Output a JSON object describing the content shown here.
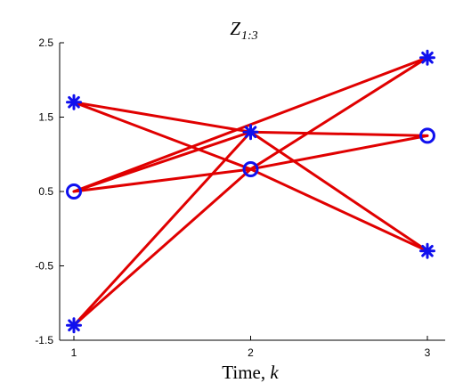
{
  "chart_data": {
    "type": "line",
    "title": {
      "main": "Z",
      "sub": "1:3"
    },
    "xlabel": {
      "text": "Time, ",
      "var": "k"
    },
    "ylabel": "",
    "xlim": [
      1,
      3
    ],
    "ylim": [
      -1.5,
      2.5
    ],
    "xticks": [
      1,
      2,
      3
    ],
    "xtick_labels": [
      "1",
      "2",
      "3"
    ],
    "yticks": [
      -1.5,
      -0.5,
      0.5,
      1.5,
      2.5
    ],
    "ytick_labels": [
      "-1.5",
      "-0.5",
      "0.5",
      "1.5",
      "2.5"
    ],
    "grid": false,
    "points": [
      {
        "x": 1,
        "y": 1.7,
        "marker": "asterisk"
      },
      {
        "x": 1,
        "y": 0.5,
        "marker": "circle"
      },
      {
        "x": 1,
        "y": -1.3,
        "marker": "asterisk"
      },
      {
        "x": 2,
        "y": 1.3,
        "marker": "asterisk"
      },
      {
        "x": 2,
        "y": 0.8,
        "marker": "circle"
      },
      {
        "x": 3,
        "y": 2.3,
        "marker": "asterisk"
      },
      {
        "x": 3,
        "y": 1.25,
        "marker": "circle"
      },
      {
        "x": 3,
        "y": -0.3,
        "marker": "asterisk"
      }
    ],
    "segments": [
      {
        "x": [
          1,
          2
        ],
        "y": [
          1.7,
          1.3
        ]
      },
      {
        "x": [
          1,
          2
        ],
        "y": [
          1.7,
          0.8
        ]
      },
      {
        "x": [
          1,
          2
        ],
        "y": [
          0.5,
          1.3
        ]
      },
      {
        "x": [
          1,
          2
        ],
        "y": [
          0.5,
          0.8
        ]
      },
      {
        "x": [
          1,
          2
        ],
        "y": [
          -1.3,
          1.3
        ]
      },
      {
        "x": [
          1,
          2
        ],
        "y": [
          -1.3,
          0.8
        ]
      },
      {
        "x": [
          2,
          3
        ],
        "y": [
          1.3,
          1.25
        ]
      },
      {
        "x": [
          2,
          3
        ],
        "y": [
          1.3,
          -0.3
        ]
      },
      {
        "x": [
          2,
          3
        ],
        "y": [
          0.8,
          2.3
        ]
      },
      {
        "x": [
          2,
          3
        ],
        "y": [
          0.8,
          -0.3
        ]
      },
      {
        "x": [
          2,
          3
        ],
        "y": [
          0.8,
          1.25
        ]
      },
      {
        "x": [
          1,
          3
        ],
        "y": [
          0.5,
          2.3
        ]
      }
    ],
    "colors": {
      "line": "#e00000",
      "marker": "#1010ee",
      "axis": "#000000"
    }
  }
}
